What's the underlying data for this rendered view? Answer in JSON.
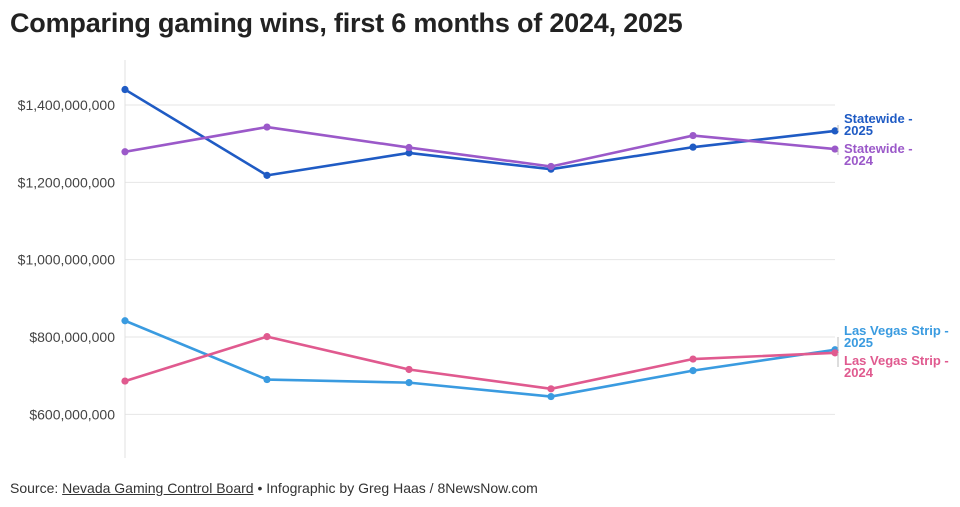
{
  "title": "Comparing gaming wins, first 6 months of 2024, 2025",
  "footer": {
    "source_prefix": "Source: ",
    "source_link": "Nevada Gaming Control Board",
    "credit": " • Infographic by Greg Haas / 8NewsNow.com"
  },
  "chart_data": {
    "type": "line",
    "title": "Comparing gaming wins, first 6 months of 2024, 2025",
    "x": [
      1,
      2,
      3,
      4,
      5,
      6
    ],
    "ylim": [
      500000000,
      1500000000
    ],
    "yticks": [
      600000000,
      800000000,
      1000000000,
      1200000000,
      1400000000
    ],
    "ytick_labels": [
      "$600,000,000",
      "$800,000,000",
      "$1,000,000,000",
      "$1,200,000,000",
      "$1,400,000,000"
    ],
    "grid": true,
    "legend": "direct labels at right end of lines",
    "series": [
      {
        "name": "Statewide - 2025",
        "label_lines": [
          "Statewide -",
          "2025"
        ],
        "color": "#1f5bc4",
        "values": [
          1440000000,
          1218000000,
          1276000000,
          1234000000,
          1291000000,
          1333000000
        ]
      },
      {
        "name": "Statewide - 2024",
        "label_lines": [
          "Statewide -",
          "2024"
        ],
        "color": "#9b59c9",
        "values": [
          1279000000,
          1343000000,
          1290000000,
          1241000000,
          1321000000,
          1286000000
        ]
      },
      {
        "name": "Las Vegas Strip - 2025",
        "label_lines": [
          "Las Vegas Strip -",
          "2025"
        ],
        "color": "#3a9be0",
        "values": [
          842000000,
          690000000,
          682000000,
          646000000,
          713000000,
          767000000
        ]
      },
      {
        "name": "Las Vegas Strip - 2024",
        "label_lines": [
          "Las Vegas Strip -",
          "2024"
        ],
        "color": "#e05a8f",
        "values": [
          686000000,
          801000000,
          716000000,
          666000000,
          743000000,
          759000000
        ]
      }
    ]
  }
}
